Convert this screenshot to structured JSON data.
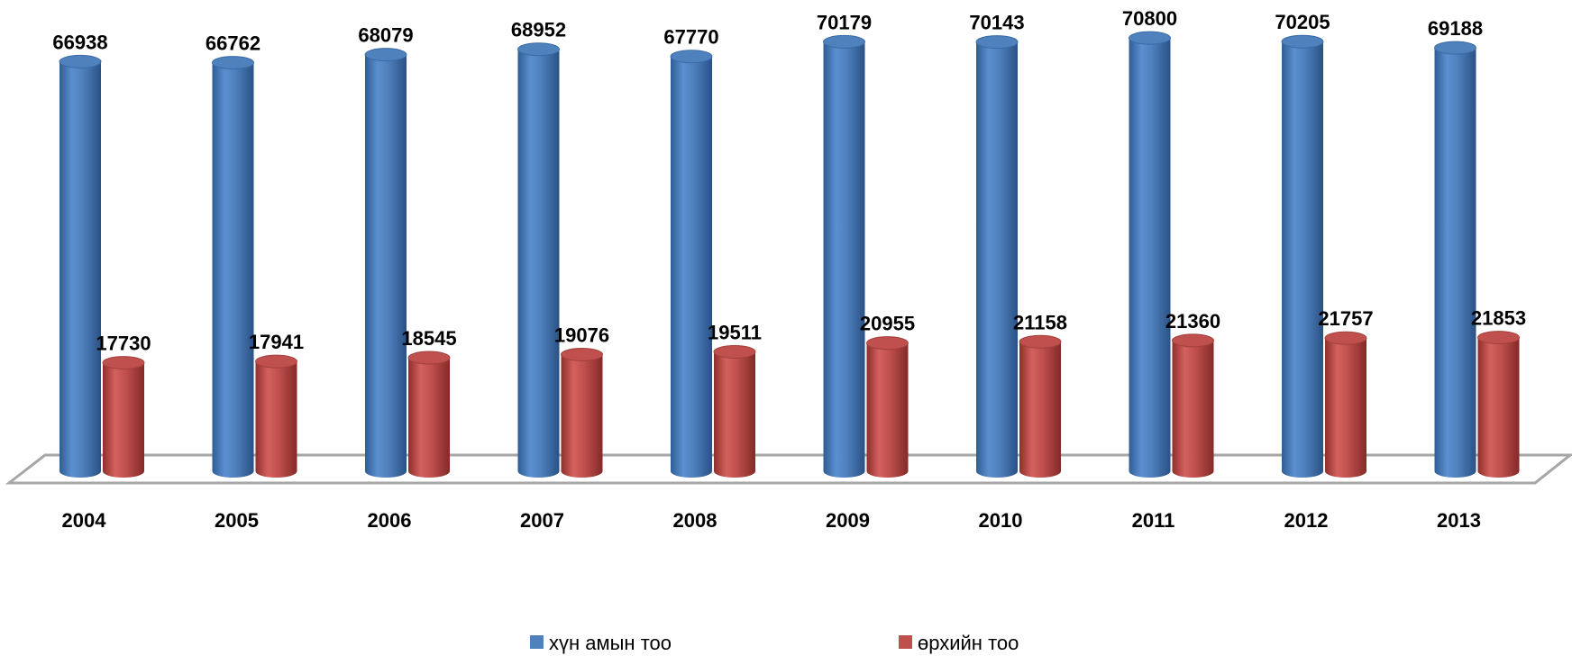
{
  "chart_data": {
    "type": "bar",
    "title": "",
    "xlabel": "",
    "ylabel": "",
    "categories": [
      "2004",
      "2005",
      "2006",
      "2007",
      "2008",
      "2009",
      "2010",
      "2011",
      "2012",
      "2013"
    ],
    "series": [
      {
        "name": "хүн амын тоо",
        "color": "#4f81bd",
        "values": [
          66938,
          66762,
          68079,
          68952,
          67770,
          70179,
          70143,
          70800,
          70205,
          69188
        ]
      },
      {
        "name": "өрхийн тоо",
        "color": "#c0504d",
        "values": [
          17730,
          17941,
          18545,
          19076,
          19511,
          20955,
          21158,
          21360,
          21757,
          21853
        ]
      }
    ],
    "ylim": [
      0,
      72000
    ],
    "grid": false,
    "legend_position": "bottom",
    "style": "3d-cylinder"
  }
}
